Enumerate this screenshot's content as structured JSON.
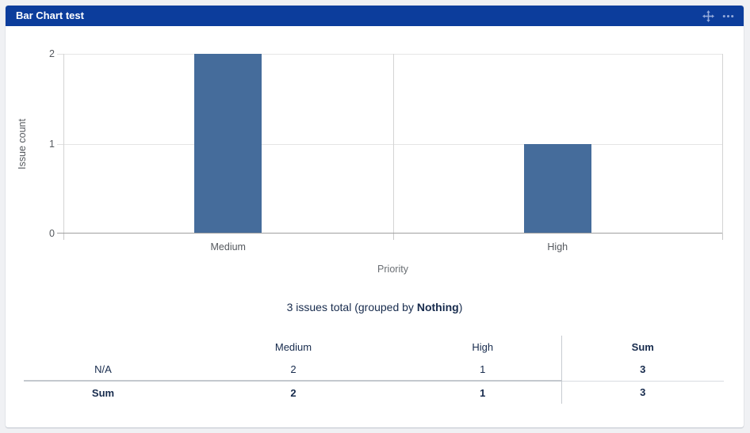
{
  "header": {
    "title": "Bar Chart test",
    "bg_color": "#0c3d9c",
    "icon_color": "#93a9da"
  },
  "chart_data": {
    "type": "bar",
    "title": "Bar Chart test",
    "categories": [
      "Medium",
      "High"
    ],
    "values": [
      2,
      1
    ],
    "xlabel": "Priority",
    "ylabel": "Issue count",
    "ylim": [
      0,
      2
    ],
    "yticks": [
      0,
      1,
      2
    ],
    "grid": "on",
    "legend": "none",
    "bar_color": "#456c9b"
  },
  "summary": {
    "prefix": "3 issues total (grouped by ",
    "bold": "Nothing",
    "suffix": ")"
  },
  "table": {
    "columns": [
      "",
      "Medium",
      "High",
      "Sum"
    ],
    "rows": [
      {
        "label": "N/A",
        "values": [
          "2",
          "1",
          "3"
        ]
      },
      {
        "label": "Sum",
        "values": [
          "2",
          "1",
          "3"
        ]
      }
    ]
  }
}
